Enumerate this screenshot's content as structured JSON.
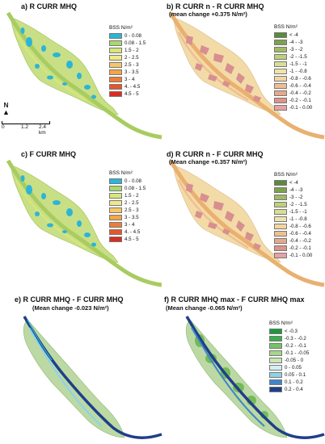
{
  "panels": {
    "a": {
      "title": "a) R CURR MHQ"
    },
    "b": {
      "title": "b) R CURR n - R CURR MHQ",
      "subtitle": "(mean change +0.375 N/m²)"
    },
    "c": {
      "title": "c) F CURR MHQ"
    },
    "d": {
      "title": "d) R CURR n - F CURR MHQ",
      "subtitle": "(Mean change +0.357 N/m²)"
    },
    "e": {
      "title": "e) R CURR MHQ - F CURR MHQ",
      "subtitle": "(Mean change -0.023 N/m²)"
    },
    "f": {
      "title": "f) R CURR MHQ max - F CURR MHQ max",
      "subtitle": "(Mean change -0.065 N/m²)"
    }
  },
  "legends": {
    "absolute": {
      "title": "BSS N/m²",
      "items": [
        {
          "label": "0 - 0.08",
          "color": "#2bb5d8"
        },
        {
          "label": "0.08 - 1.5",
          "color": "#a8d86e"
        },
        {
          "label": "1.5 - 2",
          "color": "#d5e77a"
        },
        {
          "label": "2 - 2.5",
          "color": "#f2e88a"
        },
        {
          "label": "2.5 - 3",
          "color": "#f7c766"
        },
        {
          "label": "3 - 3.5",
          "color": "#f4a545"
        },
        {
          "label": "3 - 4",
          "color": "#ef7c36"
        },
        {
          "label": "4. - 4.5",
          "color": "#e8552a"
        },
        {
          "label": "4.5 - 5",
          "color": "#dd2b22"
        }
      ]
    },
    "change": {
      "title": "BSS N/m²",
      "items": [
        {
          "label": "< -4",
          "color": "#5a8a3c"
        },
        {
          "label": "-4 - -3",
          "color": "#7ba24d"
        },
        {
          "label": "-3 - -2",
          "color": "#9fbb62"
        },
        {
          "label": "-2 - -1.5",
          "color": "#bdd07a"
        },
        {
          "label": "-1.5 - -1",
          "color": "#d6df95"
        },
        {
          "label": "-1 - -0.8",
          "color": "#eee4a8"
        },
        {
          "label": "-0.8 - -0.6",
          "color": "#f4d4a0"
        },
        {
          "label": "-0.6 - -0.4",
          "color": "#efbf92"
        },
        {
          "label": "-0.4 - -0.2",
          "color": "#e8a88a"
        },
        {
          "label": "-0.2 - -0.1",
          "color": "#df9287"
        },
        {
          "label": "-0.1 - 0.00",
          "color": "#e7a2a6"
        }
      ]
    },
    "diff": {
      "title": "BSS N/m²",
      "items": [
        {
          "label": "< -0.3",
          "color": "#1a9a3c"
        },
        {
          "label": "-0.3 - -0.2",
          "color": "#38b04c"
        },
        {
          "label": "-0.2 - -0.1",
          "color": "#72c464"
        },
        {
          "label": "-0.1 - -0.05",
          "color": "#a6d68a"
        },
        {
          "label": "-0.05 - 0",
          "color": "#cbe6b4"
        },
        {
          "label": "0 - 0.05",
          "color": "#d6eef2"
        },
        {
          "label": "0.05 - 0.1",
          "color": "#8cd2ea"
        },
        {
          "label": "0.1 - 0.2",
          "color": "#3f86c7"
        },
        {
          "label": "0.2 - 0.4",
          "color": "#1e3f8a"
        }
      ]
    }
  },
  "north": {
    "label": "N"
  },
  "scale": {
    "ticks": [
      "0",
      "1.2",
      "2.4 km"
    ]
  },
  "colors": {
    "floodplain_a": "#c9df86",
    "floodplain_change": "#f3dba8",
    "floodplain_diff": "#bcd9a4",
    "channel_change": "#e9b070",
    "patch_change": "#d88f8f",
    "patch_absolute": "#2bb5d8",
    "channel_diff": "#1e3f8a",
    "patch_diff": "#76b95a"
  }
}
